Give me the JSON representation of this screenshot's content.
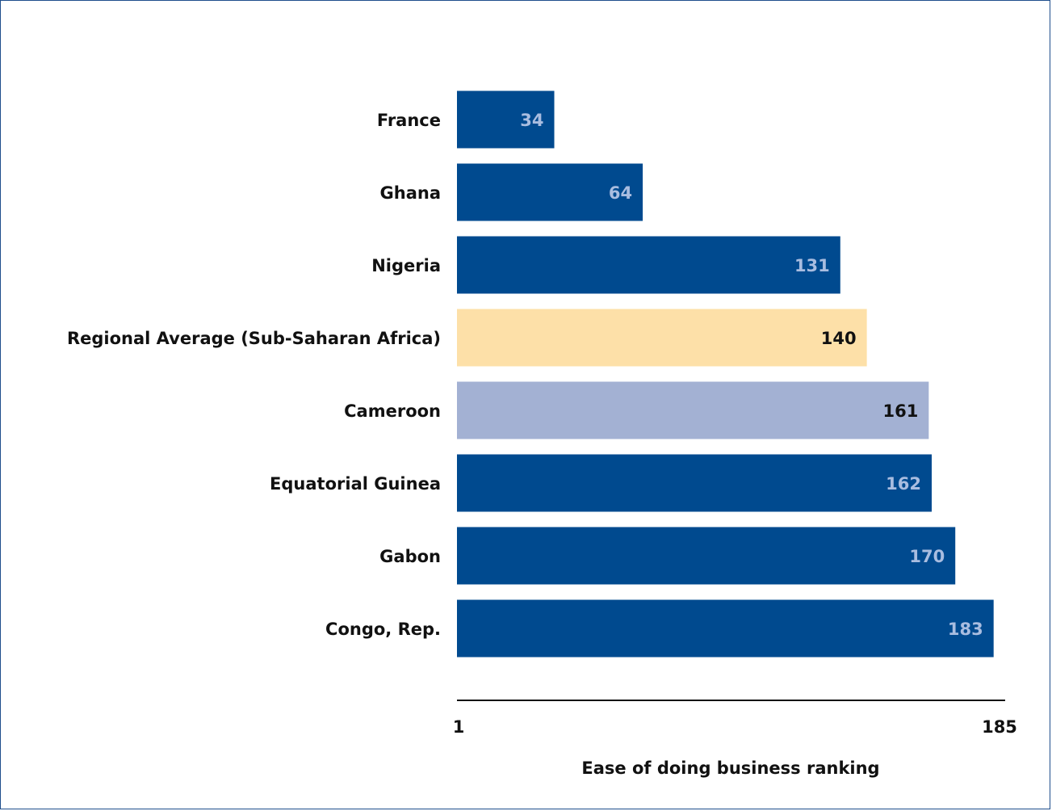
{
  "chart_data": {
    "type": "bar",
    "orientation": "horizontal",
    "categories": [
      "France",
      "Ghana",
      "Nigeria",
      "Regional Average (Sub-Saharan Africa)",
      "Cameroon",
      "Equatorial Guinea",
      "Gabon",
      "Congo, Rep."
    ],
    "values": [
      34,
      64,
      131,
      140,
      161,
      162,
      170,
      183
    ],
    "bar_colors": [
      "#004a8f",
      "#004a8f",
      "#004a8f",
      "#fde0a8",
      "#a3b1d3",
      "#004a8f",
      "#004a8f",
      "#004a8f"
    ],
    "value_label_colors": [
      "#a9bde0",
      "#a9bde0",
      "#a9bde0",
      "#111111",
      "#111111",
      "#a9bde0",
      "#a9bde0",
      "#a9bde0"
    ],
    "xlabel": "Ease of doing business ranking",
    "xlim": [
      1,
      185
    ],
    "x_ticks": [
      "1",
      "185"
    ],
    "grid": false
  }
}
